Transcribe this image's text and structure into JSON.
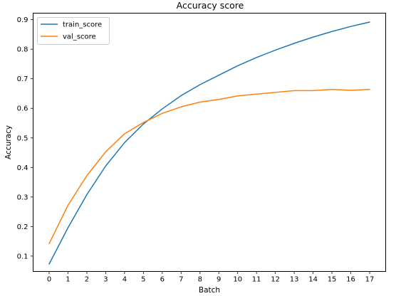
{
  "chart_data": {
    "type": "line",
    "title": "Accuracy score",
    "xlabel": "Batch",
    "ylabel": "Accuracy",
    "x": [
      0,
      1,
      2,
      3,
      4,
      5,
      6,
      7,
      8,
      9,
      10,
      11,
      12,
      13,
      14,
      15,
      16,
      17
    ],
    "xlim": [
      -0.85,
      17.85
    ],
    "ylim": [
      0.048,
      0.922
    ],
    "xticks": [
      0,
      1,
      2,
      3,
      4,
      5,
      6,
      7,
      8,
      9,
      10,
      11,
      12,
      13,
      14,
      15,
      16,
      17
    ],
    "yticks": [
      0.1,
      0.2,
      0.3,
      0.4,
      0.5,
      0.6,
      0.7,
      0.8,
      0.9
    ],
    "grid": false,
    "legend_position": "top-left",
    "series": [
      {
        "name": "train_score",
        "color": "#1f77b4",
        "values": [
          0.073,
          0.196,
          0.308,
          0.405,
          0.484,
          0.547,
          0.598,
          0.643,
          0.68,
          0.712,
          0.744,
          0.772,
          0.797,
          0.82,
          0.841,
          0.86,
          0.877,
          0.892
        ]
      },
      {
        "name": "val_score",
        "color": "#ff7f0e",
        "values": [
          0.142,
          0.272,
          0.372,
          0.453,
          0.514,
          0.552,
          0.583,
          0.605,
          0.621,
          0.63,
          0.642,
          0.648,
          0.654,
          0.66,
          0.66,
          0.664,
          0.661,
          0.664
        ]
      }
    ]
  }
}
